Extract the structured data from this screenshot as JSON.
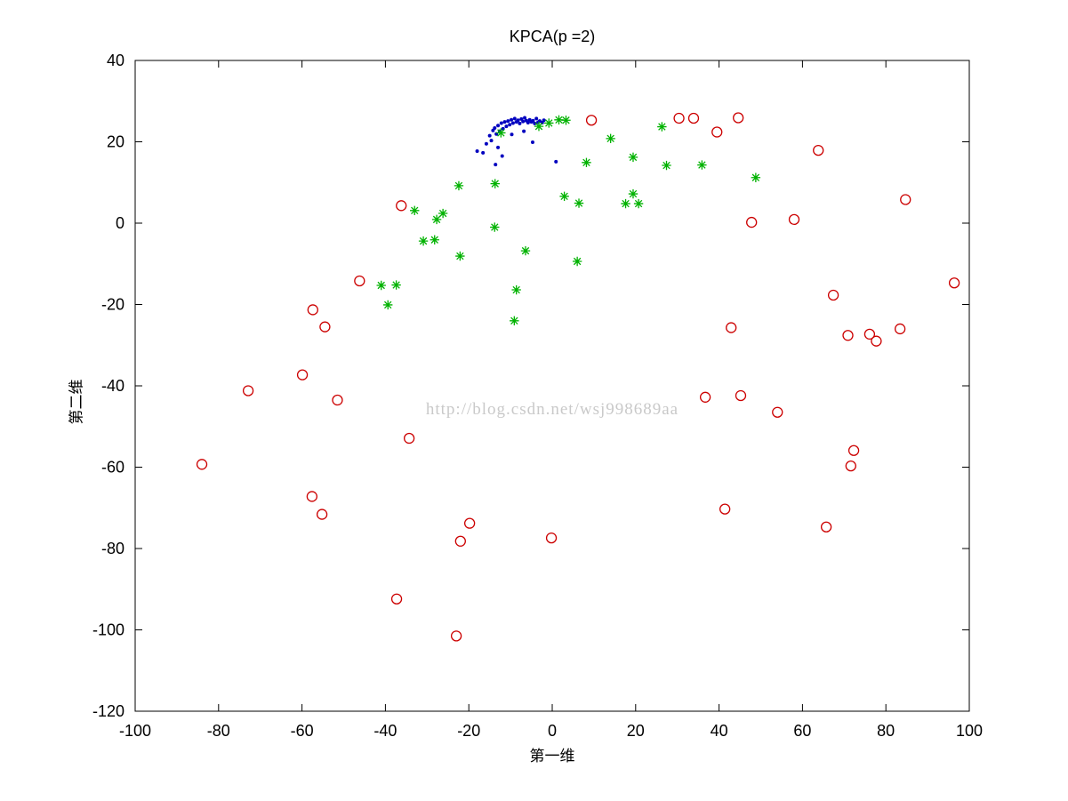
{
  "watermark": "http://blog.csdn.net/wsj998689aa",
  "chart_data": {
    "type": "scatter",
    "title": "KPCA(p =2)",
    "xlabel": "第一维",
    "ylabel": "第二维",
    "xlim": [
      -100,
      100
    ],
    "ylim": [
      -120,
      40
    ],
    "xticks": [
      -100,
      -80,
      -60,
      -40,
      -20,
      0,
      20,
      40,
      60,
      80,
      100
    ],
    "yticks": [
      -120,
      -100,
      -80,
      -60,
      -40,
      -20,
      0,
      20,
      40
    ],
    "grid": false,
    "legend_position": "none",
    "colors": {
      "blue": "#0000bf",
      "green": "#00b200",
      "red": "#cc0000"
    },
    "series": [
      {
        "name": "blue-dots",
        "marker": "dot",
        "color": "#0000bf",
        "points": [
          [
            -18.0,
            17.7
          ],
          [
            -16.6,
            17.3
          ],
          [
            -15.8,
            19.5
          ],
          [
            -15.0,
            21.5
          ],
          [
            -14.6,
            20.3
          ],
          [
            -14.2,
            22.8
          ],
          [
            -13.8,
            23.4
          ],
          [
            -13.4,
            21.9
          ],
          [
            -13.0,
            24.0
          ],
          [
            -12.6,
            22.6
          ],
          [
            -12.2,
            24.6
          ],
          [
            -11.8,
            23.2
          ],
          [
            -11.4,
            24.9
          ],
          [
            -11.0,
            23.8
          ],
          [
            -10.6,
            25.1
          ],
          [
            -10.2,
            24.2
          ],
          [
            -9.8,
            25.4
          ],
          [
            -9.4,
            24.6
          ],
          [
            -9.0,
            25.7
          ],
          [
            -8.6,
            24.9
          ],
          [
            -8.2,
            25.3
          ],
          [
            -7.8,
            24.5
          ],
          [
            -7.4,
            25.6
          ],
          [
            -7.0,
            25.0
          ],
          [
            -6.6,
            25.9
          ],
          [
            -6.2,
            25.2
          ],
          [
            -5.8,
            24.7
          ],
          [
            -5.4,
            25.4
          ],
          [
            -5.0,
            24.9
          ],
          [
            -4.6,
            25.2
          ],
          [
            -4.2,
            24.5
          ],
          [
            -3.8,
            25.7
          ],
          [
            -3.4,
            24.8
          ],
          [
            -3.0,
            25.1
          ],
          [
            -2.4,
            24.7
          ],
          [
            -2.0,
            25.3
          ],
          [
            -4.7,
            19.9
          ],
          [
            -13.0,
            18.6
          ],
          [
            -9.7,
            21.8
          ],
          [
            -6.8,
            22.6
          ],
          [
            -12.0,
            16.5
          ],
          [
            -13.6,
            14.4
          ],
          [
            0.9,
            15.1
          ]
        ]
      },
      {
        "name": "green-asterisks",
        "marker": "asterisk",
        "color": "#00b200",
        "points": [
          [
            -3.2,
            23.8
          ],
          [
            -0.8,
            24.6
          ],
          [
            1.6,
            25.4
          ],
          [
            3.3,
            25.3
          ],
          [
            -12.3,
            22.2
          ],
          [
            14.0,
            20.8
          ],
          [
            26.3,
            23.7
          ],
          [
            19.4,
            16.2
          ],
          [
            27.4,
            14.2
          ],
          [
            35.9,
            14.3
          ],
          [
            48.8,
            11.2
          ],
          [
            8.2,
            14.9
          ],
          [
            2.9,
            6.6
          ],
          [
            6.4,
            4.9
          ],
          [
            19.4,
            7.2
          ],
          [
            17.6,
            4.8
          ],
          [
            20.7,
            4.8
          ],
          [
            6.0,
            -9.4
          ],
          [
            -6.4,
            -6.8
          ],
          [
            -8.6,
            -16.4
          ],
          [
            -9.1,
            -24.0
          ],
          [
            -13.8,
            -1.0
          ],
          [
            -13.7,
            9.7
          ],
          [
            -22.1,
            -8.1
          ],
          [
            -22.4,
            9.2
          ],
          [
            -26.2,
            2.4
          ],
          [
            -27.7,
            0.9
          ],
          [
            -30.9,
            -4.4
          ],
          [
            -28.2,
            -4.1
          ],
          [
            -33.0,
            3.1
          ],
          [
            -41.0,
            -15.3
          ],
          [
            -37.4,
            -15.2
          ],
          [
            -39.4,
            -20.1
          ]
        ]
      },
      {
        "name": "red-circles",
        "marker": "circle",
        "color": "#cc0000",
        "points": [
          [
            9.4,
            25.3
          ],
          [
            30.4,
            25.8
          ],
          [
            33.9,
            25.8
          ],
          [
            44.6,
            25.9
          ],
          [
            39.5,
            22.4
          ],
          [
            63.8,
            17.9
          ],
          [
            84.7,
            5.8
          ],
          [
            58.0,
            0.9
          ],
          [
            47.8,
            0.2
          ],
          [
            96.4,
            -14.7
          ],
          [
            67.4,
            -17.7
          ],
          [
            42.9,
            -25.7
          ],
          [
            83.4,
            -26.0
          ],
          [
            70.9,
            -27.6
          ],
          [
            76.1,
            -27.3
          ],
          [
            77.7,
            -29.0
          ],
          [
            36.7,
            -42.8
          ],
          [
            45.2,
            -42.4
          ],
          [
            54.0,
            -46.5
          ],
          [
            72.3,
            -55.9
          ],
          [
            71.6,
            -59.7
          ],
          [
            41.4,
            -70.3
          ],
          [
            65.7,
            -74.7
          ],
          [
            -0.2,
            -77.4
          ],
          [
            -19.8,
            -73.8
          ],
          [
            -22.0,
            -78.2
          ],
          [
            -37.3,
            -92.4
          ],
          [
            -23.0,
            -101.5
          ],
          [
            -34.3,
            -52.9
          ],
          [
            -36.2,
            4.3
          ],
          [
            -46.2,
            -14.2
          ],
          [
            -84.0,
            -59.3
          ],
          [
            -72.9,
            -41.2
          ],
          [
            -59.9,
            -37.3
          ],
          [
            -57.4,
            -21.3
          ],
          [
            -54.5,
            -25.5
          ],
          [
            -57.6,
            -67.2
          ],
          [
            -55.2,
            -71.6
          ],
          [
            -51.5,
            -43.5
          ]
        ]
      }
    ]
  }
}
